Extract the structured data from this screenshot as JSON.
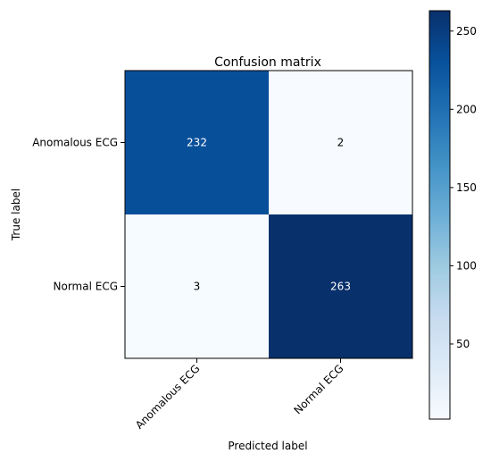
{
  "chart_data": {
    "type": "heatmap",
    "title": "Confusion matrix",
    "xlabel": "Predicted label",
    "ylabel": "True label",
    "x_categories": [
      "Anomalous ECG",
      "Normal ECG"
    ],
    "y_categories": [
      "Anomalous ECG",
      "Normal ECG"
    ],
    "values": [
      [
        232,
        2
      ],
      [
        3,
        263
      ]
    ],
    "cell_value_labels": [
      [
        "232",
        "2"
      ],
      [
        "3",
        "263"
      ]
    ],
    "colormap": "Blues",
    "colormap_light": "#f7fbff",
    "colormap_dark": "#08306b",
    "colorbar": {
      "range": [
        2,
        263
      ],
      "ticks": [
        50,
        100,
        150,
        200,
        250
      ],
      "tick_labels": [
        "50",
        "100",
        "150",
        "200",
        "250"
      ]
    },
    "grid": false
  }
}
